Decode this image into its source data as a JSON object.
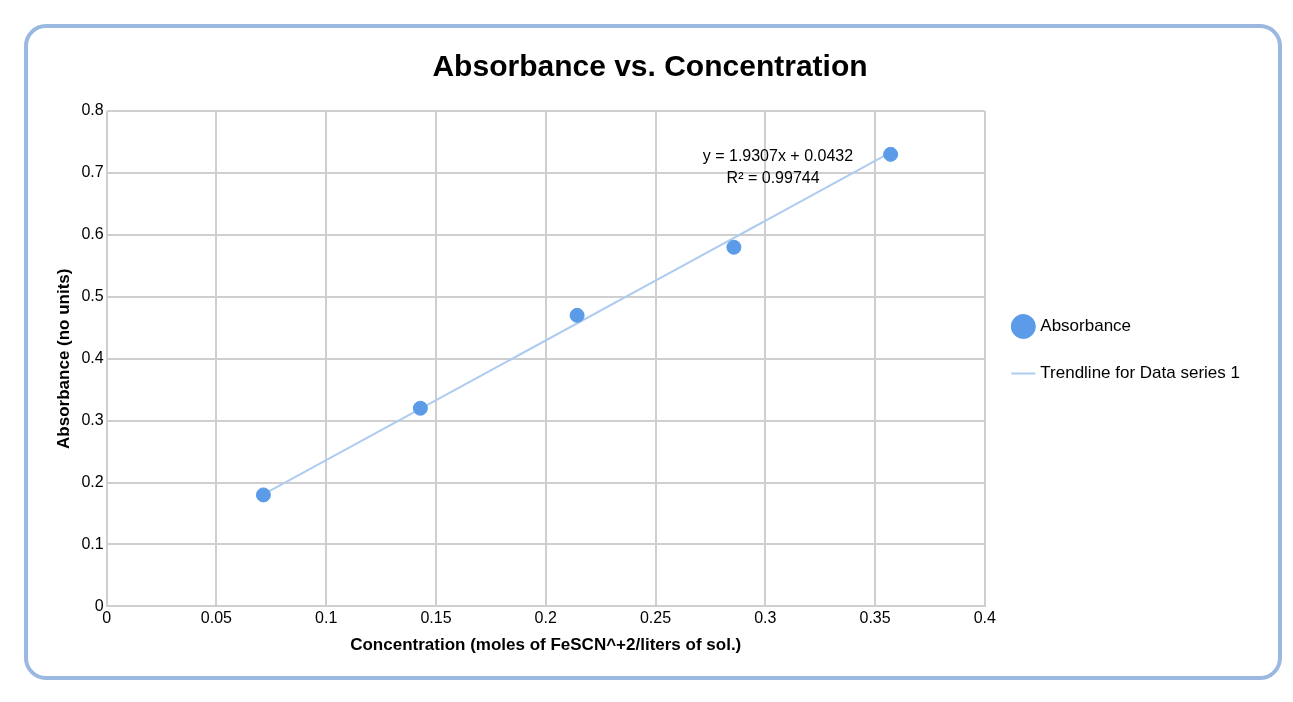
{
  "chart_data": {
    "type": "scatter",
    "title": "Absorbance vs. Concentration",
    "xlabel": "Concentration (moles of FeSCN^+2/liters of sol.)",
    "ylabel": "Absorbance (no units)",
    "x": [
      0.0714,
      0.1429,
      0.2143,
      0.2857,
      0.3571
    ],
    "series": [
      {
        "name": "Absorbance",
        "color": "#5b9be8",
        "values": [
          0.18,
          0.32,
          0.47,
          0.58,
          0.73
        ]
      },
      {
        "name": "Trendline for Data series 1",
        "type": "line",
        "marker": "none",
        "color": "#aecbf0",
        "x": [
          0.0714,
          0.3571
        ],
        "values": [
          0.181,
          0.733
        ]
      }
    ],
    "annotations": [
      "y = 1.9307x + 0.0432",
      "R² = 0.99744"
    ],
    "xlim": [
      0,
      0.4
    ],
    "xticks": [
      0,
      0.05,
      0.1,
      0.15,
      0.2,
      0.25,
      0.3,
      0.35,
      0.4
    ],
    "ylim": [
      0,
      0.8
    ],
    "yticks": [
      0,
      0.1,
      0.2,
      0.3,
      0.4,
      0.5,
      0.6,
      0.7,
      0.8
    ],
    "grid": true,
    "legend": "right",
    "marker": "circle"
  }
}
